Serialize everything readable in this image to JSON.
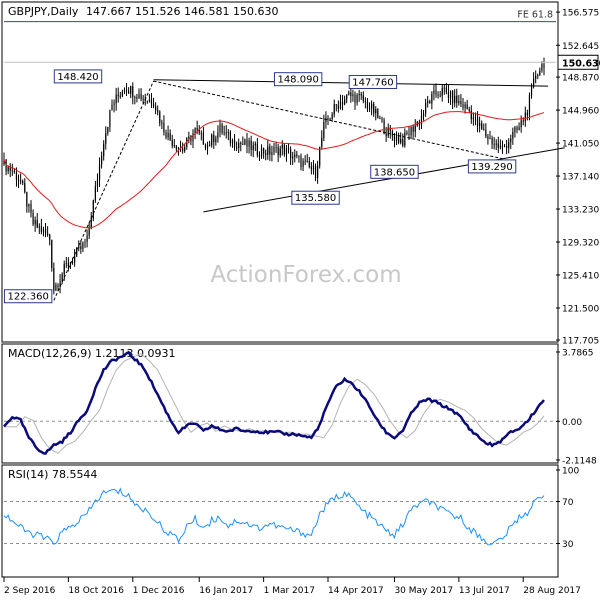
{
  "chart_data": [
    {
      "type": "candlestick",
      "title": "GBPJPY,Daily",
      "ohlc_header": "147.667 151.526 146.581 150.630",
      "watermark": "ActionForex.com",
      "y_ticks": [
        "156.575",
        "152.645",
        "148.870",
        "144.960",
        "141.050",
        "137.140",
        "133.230",
        "129.320",
        "125.410",
        "121.500",
        "117.705"
      ],
      "ylim": [
        117.705,
        157.3
      ],
      "last_price": "150.630",
      "fib_label": "FE 61.8",
      "fib_level": 155.45,
      "pivot_labels": [
        {
          "text": "148.420",
          "x": 48,
          "y": 148.42,
          "pos": "left"
        },
        {
          "text": "148.090",
          "x": 154,
          "y": 148.09,
          "pos": "left"
        },
        {
          "text": "147.760",
          "x": 190,
          "y": 147.76,
          "pos": "left"
        },
        {
          "text": "138.650",
          "x": 188,
          "y": 138.65,
          "pos": "below"
        },
        {
          "text": "135.580",
          "x": 150,
          "y": 135.58,
          "pos": "below"
        },
        {
          "text": "139.290",
          "x": 235,
          "y": 139.29,
          "pos": "below"
        },
        {
          "text": "122.360",
          "x": 24,
          "y": 122.36,
          "pos": "left"
        }
      ],
      "trendlines": [
        {
          "style": "solid",
          "x1": 72,
          "y1": 148.55,
          "x2": 262,
          "y2": 147.8
        },
        {
          "style": "solid",
          "x1": 96,
          "y1": 132.9,
          "x2": 270,
          "y2": 140.5
        },
        {
          "style": "dashed",
          "x1": 72,
          "y1": 148.4,
          "x2": 240,
          "y2": 139.2
        },
        {
          "style": "dashed",
          "x1": 24,
          "y1": 122.4,
          "x2": 72,
          "y2": 148.4
        }
      ],
      "close_anchors": [
        [
          0,
          138.5
        ],
        [
          4,
          137.8
        ],
        [
          8,
          136.5
        ],
        [
          10,
          134.8
        ],
        [
          14,
          131.5
        ],
        [
          18,
          130.8
        ],
        [
          22,
          129.7
        ],
        [
          24,
          123.8
        ],
        [
          30,
          126.5
        ],
        [
          36,
          128.2
        ],
        [
          40,
          129.5
        ],
        [
          44,
          135.5
        ],
        [
          48,
          141.5
        ],
        [
          52,
          145.5
        ],
        [
          58,
          147.8
        ],
        [
          64,
          146.9
        ],
        [
          68,
          146.3
        ],
        [
          72,
          146.1
        ],
        [
          76,
          143.2
        ],
        [
          80,
          141.5
        ],
        [
          86,
          140.3
        ],
        [
          92,
          142.5
        ],
        [
          98,
          140.8
        ],
        [
          104,
          142.7
        ],
        [
          110,
          141.2
        ],
        [
          116,
          140.9
        ],
        [
          122,
          140.2
        ],
        [
          128,
          140.0
        ],
        [
          134,
          140.4
        ],
        [
          140,
          139.3
        ],
        [
          146,
          138.3
        ],
        [
          150,
          137.6
        ],
        [
          154,
          143.0
        ],
        [
          160,
          145.5
        ],
        [
          166,
          146.7
        ],
        [
          172,
          146.3
        ],
        [
          178,
          144.8
        ],
        [
          184,
          142.5
        ],
        [
          188,
          141.8
        ],
        [
          192,
          141.3
        ],
        [
          196,
          142.6
        ],
        [
          200,
          143.7
        ],
        [
          204,
          145.8
        ],
        [
          208,
          146.9
        ],
        [
          212,
          147.2
        ],
        [
          216,
          146.3
        ],
        [
          220,
          145.7
        ],
        [
          224,
          144.9
        ],
        [
          228,
          143.2
        ],
        [
          232,
          142.0
        ],
        [
          236,
          141.0
        ],
        [
          240,
          140.3
        ],
        [
          244,
          141.8
        ],
        [
          248,
          142.8
        ],
        [
          252,
          145.0
        ],
        [
          256,
          149.2
        ],
        [
          260,
          150.6
        ]
      ],
      "ma_label": "moving average",
      "x_ticks": [
        "2 Sep 2016",
        "18 Oct 2016",
        "1 Dec 2016",
        "16 Jan 2017",
        "1 Mar 2017",
        "14 Apr 2017",
        "30 May 2017",
        "13 Jul 2017",
        "28 Aug 2017"
      ],
      "x_tick_bars": [
        0,
        31,
        62,
        94,
        125,
        156,
        188,
        219,
        250
      ],
      "bar_count": 261
    },
    {
      "type": "line",
      "title": "MACD(12,26,9) 1.2113 0.0931",
      "y_ticks": [
        "3.7865",
        "0.00",
        "-2.1148"
      ],
      "ylim": [
        -2.1148,
        3.7865
      ],
      "zero_line": 0,
      "macd_anchors": [
        [
          0,
          -0.3
        ],
        [
          4,
          0.25
        ],
        [
          8,
          0.05
        ],
        [
          12,
          -0.9
        ],
        [
          16,
          -1.5
        ],
        [
          20,
          -1.75
        ],
        [
          24,
          -1.3
        ],
        [
          28,
          -1.1
        ],
        [
          32,
          -0.6
        ],
        [
          36,
          0.05
        ],
        [
          40,
          0.6
        ],
        [
          44,
          1.8
        ],
        [
          48,
          2.8
        ],
        [
          52,
          3.3
        ],
        [
          56,
          3.5
        ],
        [
          60,
          3.7
        ],
        [
          64,
          3.3
        ],
        [
          68,
          2.8
        ],
        [
          72,
          1.9
        ],
        [
          76,
          1.0
        ],
        [
          80,
          0.1
        ],
        [
          84,
          -0.6
        ],
        [
          88,
          -0.25
        ],
        [
          92,
          -0.1
        ],
        [
          96,
          -0.55
        ],
        [
          100,
          -0.25
        ],
        [
          104,
          -0.45
        ],
        [
          108,
          -0.55
        ],
        [
          112,
          -0.4
        ],
        [
          116,
          -0.55
        ],
        [
          120,
          -0.5
        ],
        [
          124,
          -0.6
        ],
        [
          128,
          -0.6
        ],
        [
          132,
          -0.6
        ],
        [
          136,
          -0.7
        ],
        [
          140,
          -0.7
        ],
        [
          144,
          -0.8
        ],
        [
          148,
          -0.9
        ],
        [
          152,
          -0.2
        ],
        [
          156,
          1.0
        ],
        [
          160,
          1.9
        ],
        [
          164,
          2.3
        ],
        [
          168,
          2.0
        ],
        [
          172,
          1.5
        ],
        [
          176,
          0.8
        ],
        [
          180,
          0.0
        ],
        [
          184,
          -0.6
        ],
        [
          188,
          -0.9
        ],
        [
          192,
          -0.5
        ],
        [
          196,
          0.4
        ],
        [
          200,
          1.0
        ],
        [
          204,
          1.2
        ],
        [
          208,
          1.05
        ],
        [
          212,
          0.8
        ],
        [
          216,
          0.6
        ],
        [
          220,
          0.2
        ],
        [
          224,
          -0.4
        ],
        [
          228,
          -0.8
        ],
        [
          232,
          -1.2
        ],
        [
          236,
          -1.3
        ],
        [
          240,
          -1.0
        ],
        [
          244,
          -0.6
        ],
        [
          248,
          -0.4
        ],
        [
          252,
          0.0
        ],
        [
          256,
          0.6
        ],
        [
          260,
          1.2113
        ]
      ],
      "signal_lag": 6
    },
    {
      "type": "line",
      "title": "RSI(14) 78.5544",
      "y_ticks": [
        "100",
        "70",
        "30"
      ],
      "ylim": [
        0,
        100
      ],
      "levels": [
        70,
        30
      ],
      "rsi_anchors": [
        [
          0,
          58
        ],
        [
          4,
          52
        ],
        [
          8,
          45
        ],
        [
          12,
          40
        ],
        [
          16,
          38
        ],
        [
          20,
          35
        ],
        [
          24,
          30
        ],
        [
          28,
          41
        ],
        [
          32,
          45
        ],
        [
          36,
          52
        ],
        [
          40,
          58
        ],
        [
          44,
          70
        ],
        [
          48,
          78
        ],
        [
          52,
          80
        ],
        [
          56,
          79
        ],
        [
          60,
          76
        ],
        [
          64,
          65
        ],
        [
          68,
          62
        ],
        [
          72,
          55
        ],
        [
          76,
          45
        ],
        [
          80,
          40
        ],
        [
          84,
          32
        ],
        [
          88,
          47
        ],
        [
          92,
          53
        ],
        [
          96,
          45
        ],
        [
          100,
          52
        ],
        [
          104,
          55
        ],
        [
          108,
          47
        ],
        [
          112,
          52
        ],
        [
          116,
          50
        ],
        [
          120,
          46
        ],
        [
          124,
          45
        ],
        [
          128,
          49
        ],
        [
          132,
          46
        ],
        [
          136,
          44
        ],
        [
          140,
          42
        ],
        [
          144,
          40
        ],
        [
          148,
          38
        ],
        [
          152,
          58
        ],
        [
          156,
          68
        ],
        [
          160,
          74
        ],
        [
          164,
          78
        ],
        [
          168,
          72
        ],
        [
          172,
          62
        ],
        [
          176,
          56
        ],
        [
          180,
          49
        ],
        [
          184,
          42
        ],
        [
          188,
          38
        ],
        [
          192,
          48
        ],
        [
          196,
          62
        ],
        [
          200,
          68
        ],
        [
          204,
          70
        ],
        [
          208,
          66
        ],
        [
          212,
          60
        ],
        [
          216,
          57
        ],
        [
          220,
          54
        ],
        [
          224,
          45
        ],
        [
          228,
          38
        ],
        [
          232,
          32
        ],
        [
          236,
          30
        ],
        [
          240,
          35
        ],
        [
          244,
          45
        ],
        [
          248,
          55
        ],
        [
          252,
          60
        ],
        [
          256,
          70
        ],
        [
          260,
          78.55
        ]
      ]
    }
  ]
}
